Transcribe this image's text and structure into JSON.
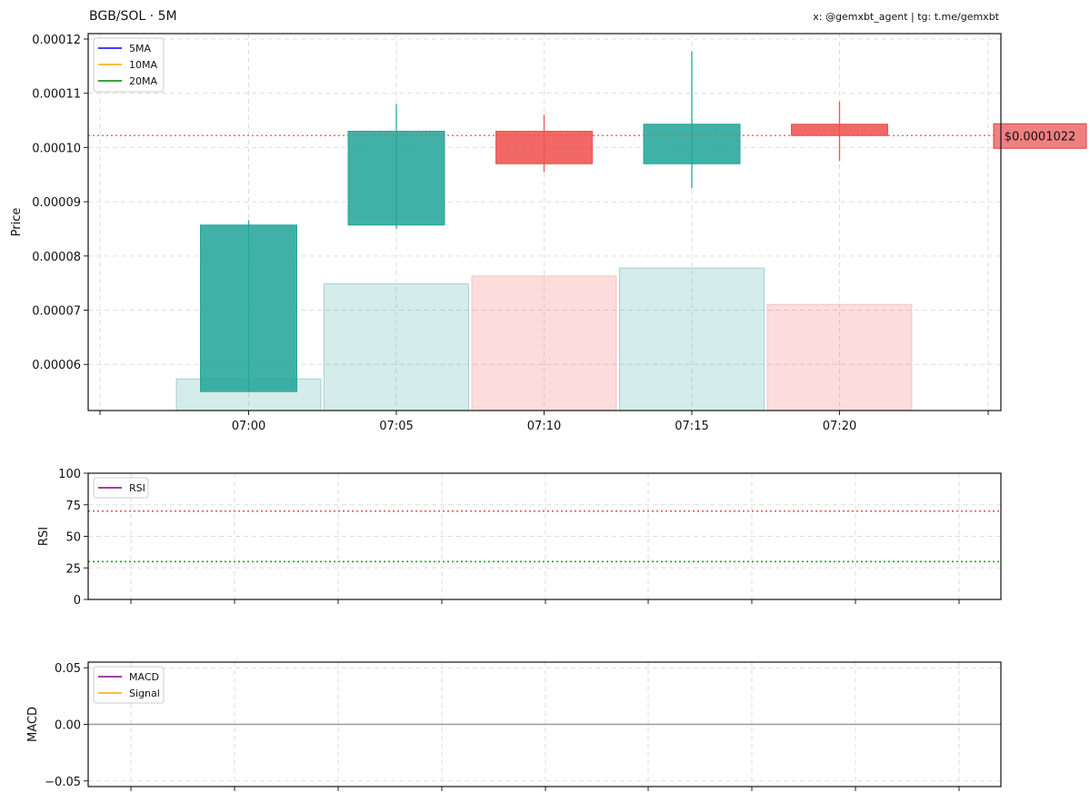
{
  "header": {
    "title": "BGB/SOL · 5M",
    "credit": "x: @gemxbt_agent | tg: t.me/gemxbt"
  },
  "colors": {
    "up": "#26a69a",
    "down": "#ef5350",
    "ma5": "#0000ff",
    "ma10": "#ffa500",
    "ma20": "#008000",
    "rsi": "#800080",
    "macd": "#800080",
    "signal": "#ffa500",
    "overbought": "#ef5350",
    "oversold": "#2ca02c",
    "zero_line": "#999999",
    "grid": "#dddddd",
    "price_label_bg": "#f08080"
  },
  "chart_data": [
    {
      "type": "candlestick",
      "ylabel": "Price",
      "ylim": [
        5.15e-05,
        0.000121
      ],
      "yticks": [
        6e-05,
        7e-05,
        8e-05,
        9e-05,
        0.0001,
        0.00011,
        0.00012
      ],
      "ytick_labels": [
        "0.00006",
        "0.00007",
        "0.00008",
        "0.00009",
        "0.00010",
        "0.00011",
        "0.00012"
      ],
      "xticks": [
        "07:00",
        "07:05",
        "07:10",
        "07:15",
        "07:20"
      ],
      "grid": true,
      "legend": {
        "placement": "top-left",
        "entries": [
          "5MA",
          "10MA",
          "20MA"
        ]
      },
      "candles": [
        {
          "time": "07:00",
          "open": 5.5e-05,
          "high": 8.66e-05,
          "low": 5.5e-05,
          "close": 8.57e-05,
          "volume_level": 0.2
        },
        {
          "time": "07:05",
          "open": 8.57e-05,
          "high": 0.000108,
          "low": 8.5e-05,
          "close": 0.000103,
          "volume_level": 0.8
        },
        {
          "time": "07:10",
          "open": 0.000103,
          "high": 0.000106,
          "low": 9.55e-05,
          "close": 9.7e-05,
          "volume_level": 0.85
        },
        {
          "time": "07:15",
          "open": 9.7e-05,
          "high": 0.0001177,
          "low": 9.25e-05,
          "close": 0.0001043,
          "volume_level": 0.9
        },
        {
          "time": "07:20",
          "open": 0.0001043,
          "high": 0.0001085,
          "low": 9.75e-05,
          "close": 0.0001022,
          "volume_level": 0.67
        }
      ],
      "last_price": 0.0001022,
      "last_price_label": "$0.0001022"
    },
    {
      "type": "line",
      "ylabel": "RSI",
      "ylim": [
        0,
        100
      ],
      "yticks": [
        0,
        25,
        50,
        75,
        100
      ],
      "ytick_labels": [
        "0",
        "25",
        "50",
        "75",
        "100"
      ],
      "levels": [
        70,
        30
      ],
      "grid": true,
      "legend": {
        "placement": "top-left",
        "entries": [
          "RSI"
        ]
      },
      "series": []
    },
    {
      "type": "line",
      "ylabel": "MACD",
      "ylim": [
        -0.055,
        0.055
      ],
      "yticks": [
        -0.05,
        0.0,
        0.05
      ],
      "ytick_labels": [
        "−0.05",
        "0.00",
        "0.05"
      ],
      "grid": true,
      "legend": {
        "placement": "top-left",
        "entries": [
          "MACD",
          "Signal"
        ]
      },
      "series": []
    }
  ]
}
